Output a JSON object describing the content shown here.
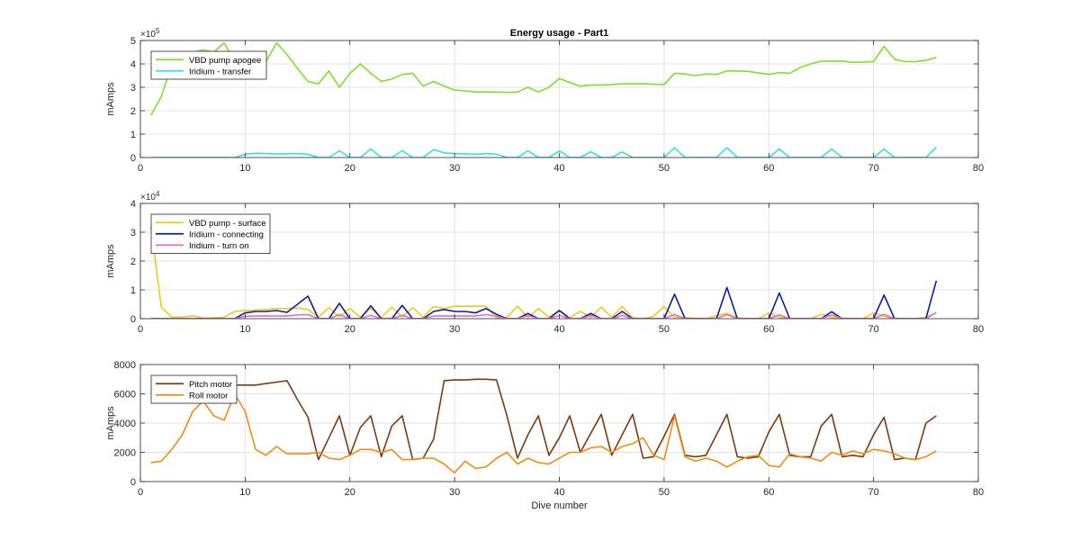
{
  "chart_data": [
    {
      "type": "line",
      "title": "Energy usage - Part1",
      "xlabel": "",
      "ylabel": "mAmps",
      "xlim": [
        0,
        80
      ],
      "ylim": [
        0,
        500000
      ],
      "xticks": [
        0,
        10,
        20,
        30,
        40,
        50,
        60,
        70,
        80
      ],
      "yticks": [
        0,
        100000,
        200000,
        300000,
        400000,
        500000
      ],
      "ytick_labels": [
        "0",
        "1",
        "2",
        "3",
        "4",
        "5"
      ],
      "y_exponent_base": "×10",
      "y_exponent_power": "5",
      "grid": true,
      "legend_position": "top-left",
      "x": [
        1,
        2,
        3,
        4,
        5,
        6,
        7,
        8,
        9,
        10,
        11,
        12,
        13,
        14,
        15,
        16,
        17,
        18,
        19,
        20,
        21,
        22,
        23,
        24,
        25,
        26,
        27,
        28,
        29,
        30,
        31,
        32,
        33,
        34,
        35,
        36,
        37,
        38,
        39,
        40,
        41,
        42,
        43,
        44,
        45,
        46,
        47,
        48,
        49,
        50,
        51,
        52,
        53,
        54,
        55,
        56,
        57,
        58,
        59,
        60,
        61,
        62,
        63,
        64,
        65,
        66,
        67,
        68,
        69,
        70,
        71,
        72,
        73,
        74,
        75,
        76
      ],
      "series": [
        {
          "name": "VBD pump apogee",
          "color": "#7ee02b",
          "values": [
            180000,
            260000,
            400000,
            430000,
            450000,
            460000,
            450000,
            490000,
            410000,
            395000,
            405000,
            410000,
            490000,
            440000,
            380000,
            325000,
            315000,
            370000,
            300000,
            360000,
            400000,
            360000,
            325000,
            335000,
            355000,
            360000,
            305000,
            325000,
            305000,
            288000,
            285000,
            280000,
            280000,
            280000,
            278000,
            280000,
            300000,
            280000,
            300000,
            338000,
            320000,
            305000,
            310000,
            310000,
            312000,
            315000,
            315000,
            315000,
            313000,
            312000,
            360000,
            357000,
            350000,
            357000,
            355000,
            370000,
            370000,
            368000,
            362000,
            355000,
            363000,
            360000,
            385000,
            400000,
            412000,
            412000,
            412000,
            407000,
            408000,
            410000,
            475000,
            420000,
            410000,
            410000,
            415000,
            428000
          ]
        },
        {
          "name": "Iridium - transfer",
          "color": "#2fe3e3",
          "values": [
            0,
            0,
            0,
            0,
            0,
            0,
            0,
            0,
            0,
            14000,
            18000,
            17000,
            15000,
            16000,
            17000,
            14000,
            0,
            0,
            29000,
            0,
            0,
            36000,
            0,
            0,
            29000,
            0,
            0,
            34000,
            20000,
            17000,
            15000,
            14000,
            17000,
            14000,
            0,
            0,
            29000,
            0,
            0,
            28000,
            0,
            0,
            25000,
            0,
            0,
            24000,
            0,
            0,
            0,
            0,
            42000,
            0,
            0,
            0,
            0,
            42000,
            0,
            0,
            0,
            0,
            36000,
            0,
            0,
            0,
            0,
            36000,
            0,
            0,
            0,
            0,
            36000,
            0,
            0,
            0,
            0,
            44000
          ]
        }
      ]
    },
    {
      "type": "line",
      "title": "",
      "xlabel": "",
      "ylabel": "mAmps",
      "xlim": [
        0,
        80
      ],
      "ylim": [
        0,
        40000
      ],
      "xticks": [
        0,
        10,
        20,
        30,
        40,
        50,
        60,
        70,
        80
      ],
      "yticks": [
        0,
        10000,
        20000,
        30000,
        40000
      ],
      "ytick_labels": [
        "0",
        "1",
        "2",
        "3",
        "4"
      ],
      "y_exponent_base": "×10",
      "y_exponent_power": "4",
      "grid": true,
      "legend_position": "top-left",
      "x": [
        1,
        2,
        3,
        4,
        5,
        6,
        7,
        8,
        9,
        10,
        11,
        12,
        13,
        14,
        15,
        16,
        17,
        18,
        19,
        20,
        21,
        22,
        23,
        24,
        25,
        26,
        27,
        28,
        29,
        30,
        31,
        32,
        33,
        34,
        35,
        36,
        37,
        38,
        39,
        40,
        41,
        42,
        43,
        44,
        45,
        46,
        47,
        48,
        49,
        50,
        51,
        52,
        53,
        54,
        55,
        56,
        57,
        58,
        59,
        60,
        61,
        62,
        63,
        64,
        65,
        66,
        67,
        68,
        69,
        70,
        71,
        72,
        73,
        74,
        75,
        76
      ],
      "series": [
        {
          "name": "VBD pump - surface",
          "color": "#f0c81e",
          "values": [
            32000,
            4000,
            500,
            600,
            1000,
            200,
            300,
            500,
            2500,
            2800,
            3000,
            3200,
            3500,
            3500,
            3700,
            3200,
            500,
            3800,
            700,
            3500,
            500,
            3500,
            400,
            4000,
            600,
            3800,
            500,
            4200,
            3500,
            4300,
            4300,
            4300,
            4300,
            300,
            500,
            4300,
            300,
            3500,
            500,
            3000,
            300,
            2500,
            400,
            4000,
            500,
            4200,
            300,
            0,
            800,
            4200,
            500,
            300,
            200,
            0,
            1000,
            1800,
            300,
            0,
            0,
            2000,
            500,
            0,
            0,
            0,
            1500,
            500,
            200,
            0,
            0,
            2000,
            800,
            0,
            0,
            0,
            500,
            2000
          ]
        },
        {
          "name": "Iridium - connecting",
          "color": "#0a1ea0",
          "values": [
            0,
            0,
            0,
            0,
            0,
            0,
            0,
            0,
            0,
            2000,
            2500,
            2500,
            2800,
            2200,
            5000,
            7800,
            0,
            0,
            5300,
            0,
            0,
            4500,
            0,
            0,
            4600,
            0,
            0,
            2500,
            3200,
            2500,
            2500,
            2000,
            3500,
            1500,
            0,
            0,
            1800,
            0,
            0,
            2800,
            0,
            0,
            1800,
            0,
            0,
            2500,
            0,
            0,
            0,
            0,
            8500,
            0,
            0,
            0,
            0,
            10800,
            0,
            0,
            0,
            0,
            8900,
            0,
            0,
            0,
            0,
            2400,
            0,
            0,
            0,
            0,
            8200,
            0,
            0,
            0,
            0,
            13200
          ]
        },
        {
          "name": "Iridium - turn on",
          "color": "#e06ec8",
          "values": [
            0,
            0,
            0,
            0,
            0,
            0,
            0,
            0,
            0,
            800,
            900,
            900,
            900,
            900,
            1300,
            1400,
            0,
            0,
            1400,
            0,
            0,
            1200,
            0,
            0,
            1200,
            0,
            0,
            900,
            900,
            900,
            900,
            900,
            1400,
            800,
            0,
            0,
            1100,
            0,
            0,
            1100,
            0,
            0,
            1100,
            0,
            0,
            1100,
            0,
            0,
            0,
            0,
            1400,
            0,
            0,
            0,
            0,
            1400,
            0,
            0,
            0,
            0,
            1300,
            0,
            0,
            0,
            0,
            1300,
            0,
            0,
            0,
            0,
            1500,
            0,
            0,
            0,
            0,
            2200
          ]
        }
      ]
    },
    {
      "type": "line",
      "title": "",
      "xlabel": "Dive number",
      "ylabel": "mAmps",
      "xlim": [
        0,
        80
      ],
      "ylim": [
        0,
        8000
      ],
      "xticks": [
        0,
        10,
        20,
        30,
        40,
        50,
        60,
        70,
        80
      ],
      "yticks": [
        0,
        2000,
        4000,
        6000,
        8000
      ],
      "ytick_labels": [
        "0",
        "2000",
        "4000",
        "6000",
        "8000"
      ],
      "y_exponent_base": "",
      "y_exponent_power": "",
      "grid": true,
      "legend_position": "top-left",
      "x": [
        1,
        2,
        3,
        4,
        5,
        6,
        7,
        8,
        9,
        10,
        11,
        12,
        13,
        14,
        15,
        16,
        17,
        18,
        19,
        20,
        21,
        22,
        23,
        24,
        25,
        26,
        27,
        28,
        29,
        30,
        31,
        32,
        33,
        34,
        35,
        36,
        37,
        38,
        39,
        40,
        41,
        42,
        43,
        44,
        45,
        46,
        47,
        48,
        49,
        50,
        51,
        52,
        53,
        54,
        55,
        56,
        57,
        58,
        59,
        60,
        61,
        62,
        63,
        64,
        65,
        66,
        67,
        68,
        69,
        70,
        71,
        72,
        73,
        74,
        75,
        76
      ],
      "series": [
        {
          "name": "Pitch motor",
          "color": "#7a3a12",
          "values": [
            6500,
            6500,
            6500,
            6600,
            6600,
            6600,
            6600,
            6600,
            6600,
            6600,
            6600,
            6700,
            6800,
            6900,
            5600,
            4400,
            1500,
            3000,
            4500,
            1800,
            3700,
            4500,
            1700,
            3800,
            4500,
            1500,
            1600,
            2900,
            6900,
            6950,
            6950,
            7000,
            7000,
            6950,
            4500,
            1600,
            3200,
            4500,
            1800,
            3000,
            4500,
            2000,
            3300,
            4600,
            1800,
            3200,
            4600,
            1600,
            1700,
            3100,
            4600,
            1800,
            1700,
            1800,
            3200,
            4600,
            1700,
            1600,
            1700,
            3400,
            4600,
            1800,
            1700,
            1700,
            3800,
            4600,
            1700,
            1800,
            1700,
            3200,
            4400,
            1500,
            1600,
            1500,
            4000,
            4500
          ]
        },
        {
          "name": "Roll motor",
          "color": "#f08c14",
          "values": [
            1300,
            1400,
            2200,
            3200,
            4800,
            5500,
            4500,
            4200,
            6000,
            4800,
            2200,
            1800,
            2400,
            1900,
            1900,
            1900,
            2000,
            1600,
            1500,
            1800,
            2200,
            2200,
            2000,
            2200,
            1500,
            1500,
            1600,
            1600,
            1200,
            600,
            1400,
            900,
            1000,
            1600,
            2000,
            1200,
            1600,
            1300,
            1200,
            1600,
            2000,
            2000,
            2300,
            2400,
            2000,
            2400,
            2600,
            3000,
            1800,
            1500,
            4500,
            1700,
            1400,
            1600,
            1400,
            1000,
            1400,
            1700,
            1800,
            1100,
            1000,
            1900,
            1700,
            1600,
            1400,
            2000,
            1800,
            2100,
            1900,
            2200,
            2100,
            1900,
            1600,
            1500,
            1700,
            2100
          ]
        }
      ]
    }
  ]
}
